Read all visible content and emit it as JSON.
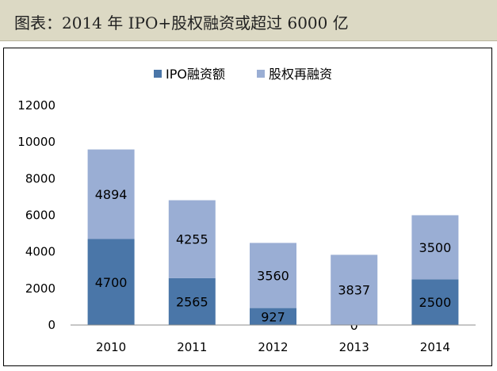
{
  "header": {
    "title": "图表：2014 年 IPO+股权融资或超过 6000 亿"
  },
  "chart_data": {
    "type": "bar",
    "stacked": true,
    "categories": [
      "2010",
      "2011",
      "2012",
      "2013",
      "2014"
    ],
    "series": [
      {
        "name": "IPO融资额",
        "values": [
          4700,
          2565,
          927,
          0,
          2500
        ],
        "color": "#4a76a8"
      },
      {
        "name": "股权再融资",
        "values": [
          4894,
          4255,
          3560,
          3837,
          3500
        ],
        "color": "#9aaed4"
      }
    ],
    "yticks": [
      "0",
      "2000",
      "4000",
      "6000",
      "8000",
      "10000",
      "12000"
    ],
    "ylim": [
      0,
      12000
    ],
    "grid": false,
    "legend": "top-center",
    "data_labels": true
  }
}
